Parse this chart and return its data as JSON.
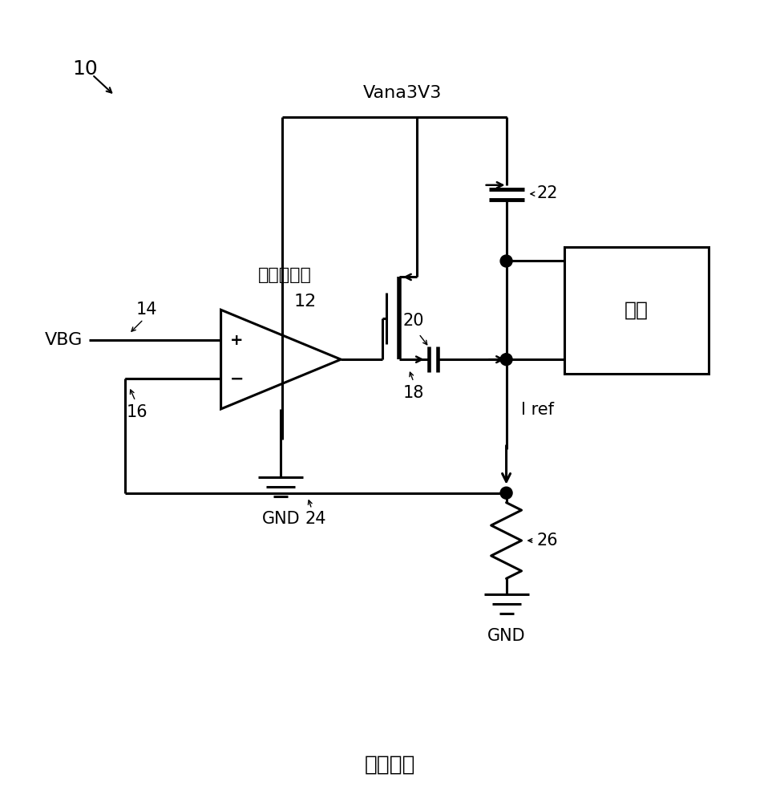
{
  "title": "现有技术",
  "vana_label": "Vana3V3",
  "vbg_label": "VBG",
  "gnd_label": "GND",
  "opamp_label": "运算放大器",
  "mirror_label": "镜像",
  "iref_label": "I ref",
  "label_10": "10",
  "label_12": "12",
  "label_14": "14",
  "label_16": "16",
  "label_18": "18",
  "label_20": "20",
  "label_22": "22",
  "label_24": "24",
  "label_26": "26",
  "bg_color": "#ffffff",
  "line_color": "#000000",
  "line_width": 2.2,
  "font_size": 15,
  "label_font_size": 15
}
